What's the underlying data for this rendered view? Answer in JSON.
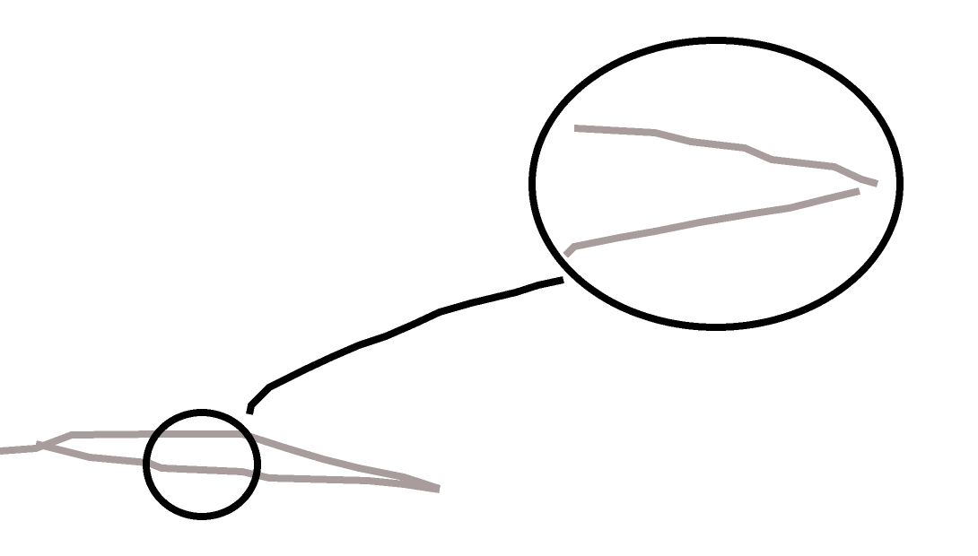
{
  "drawing": {
    "outline_color": "#000000",
    "fill_stroke_color": "#a89c9c",
    "background_color": "#ffffff"
  }
}
